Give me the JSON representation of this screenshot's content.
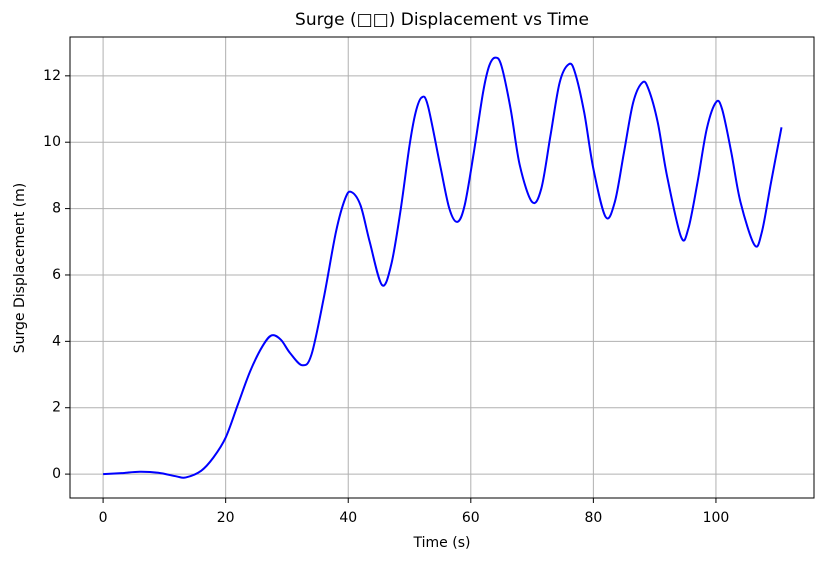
{
  "chart_data": {
    "type": "line",
    "title": "Surge (□□) Displacement vs Time",
    "x_label": "Time (s)",
    "y_label": "Surge Displacement (m)",
    "x": [
      0,
      3,
      6,
      9,
      12,
      13.5,
      16,
      18,
      20,
      22,
      24,
      26,
      27.5,
      29,
      30.5,
      32.5,
      34,
      36,
      38,
      39.5,
      40.5,
      42,
      43.5,
      45.5,
      47,
      48.5,
      50,
      51,
      52,
      53,
      55,
      56.5,
      57.8,
      59,
      60.5,
      62,
      63,
      64,
      65,
      66.5,
      68,
      70,
      71.5,
      73,
      74.5,
      76,
      77,
      78.5,
      80,
      82,
      83.5,
      85,
      86.5,
      88,
      89,
      90.5,
      92,
      94.3,
      95.5,
      97,
      98.5,
      100,
      101,
      102.5,
      104,
      106.3,
      107.5,
      109,
      110.7
    ],
    "series": [
      {
        "color": "#0000ff",
        "values": [
          0,
          0.03,
          0.07,
          0.04,
          -0.07,
          -0.1,
          0.1,
          0.5,
          1.1,
          2.1,
          3.1,
          3.85,
          4.18,
          4.05,
          3.65,
          3.28,
          3.6,
          5.3,
          7.3,
          8.3,
          8.5,
          8.1,
          7.0,
          5.7,
          6.3,
          7.9,
          9.9,
          10.9,
          11.35,
          11.1,
          9.3,
          8.0,
          7.6,
          8.1,
          9.7,
          11.5,
          12.3,
          12.55,
          12.3,
          11.0,
          9.3,
          8.2,
          8.6,
          10.2,
          11.8,
          12.35,
          12.1,
          10.9,
          9.2,
          7.75,
          8.2,
          9.7,
          11.2,
          11.8,
          11.6,
          10.6,
          9.0,
          7.15,
          7.4,
          8.8,
          10.4,
          11.2,
          11.0,
          9.7,
          8.2,
          6.9,
          7.3,
          8.8,
          10.45
        ]
      }
    ],
    "xlim": [
      -5.4,
      116.0
    ],
    "ylim": [
      -0.72,
      13.17
    ],
    "xticks": [
      0,
      20,
      40,
      60,
      80,
      100
    ],
    "yticks": [
      0,
      2,
      4,
      6,
      8,
      10,
      12
    ],
    "grid": true
  }
}
